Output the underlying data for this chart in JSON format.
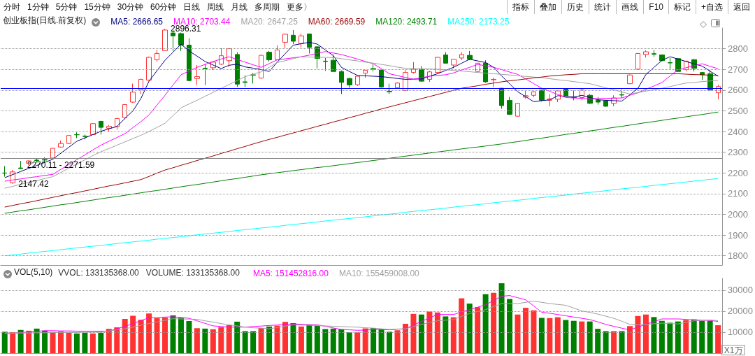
{
  "chart_data": [
    {
      "type": "other",
      "annotations": [
        "分时",
        "1分钟",
        "5分钟",
        "15分钟",
        "30分钟",
        "60分钟",
        "日线",
        "周线",
        "月线",
        "多周期",
        "更多〉"
      ]
    },
    {
      "type": "other",
      "annotations": [
        "指标",
        "叠加",
        "历史",
        "统计",
        "画线",
        "F10",
        "标记",
        "+自选",
        "返回"
      ]
    },
    {
      "type": "candlestick",
      "title": "创业板指(日线.前复权)",
      "categories": [
        null,
        null,
        null,
        null,
        null,
        null,
        null,
        null,
        null,
        null,
        null,
        null,
        null,
        null,
        null,
        null,
        null,
        null,
        null,
        null,
        null,
        null,
        null,
        null,
        null,
        null,
        null,
        null,
        null,
        null,
        null,
        null,
        null,
        null,
        null,
        null,
        null,
        null,
        null,
        null,
        null,
        null,
        null,
        null,
        null,
        null,
        null,
        null,
        null,
        null,
        null,
        null,
        null,
        null,
        null,
        null,
        null,
        null,
        null,
        null,
        null,
        null,
        null,
        null,
        null,
        null,
        null,
        null,
        null,
        null,
        null,
        null,
        null,
        null,
        null,
        null,
        null,
        null,
        null,
        null,
        null,
        null,
        null,
        null,
        null,
        null,
        null,
        null,
        null,
        null
      ],
      "ohlc": [
        [
          2200,
          2233,
          2182,
          2198
        ],
        [
          2152,
          2215,
          2147.42,
          2205
        ],
        [
          2224,
          2258,
          2219,
          2221
        ],
        [
          2247,
          2260,
          2238,
          2258
        ],
        [
          2262,
          2272,
          2250,
          2260
        ],
        [
          2265,
          2275,
          2250,
          2262
        ],
        [
          2272,
          2320,
          2268,
          2319
        ],
        [
          2325,
          2356,
          2322,
          2342
        ],
        [
          2342,
          2383,
          2340,
          2381
        ],
        [
          2385,
          2396,
          2368,
          2384
        ],
        [
          2378,
          2385,
          2362,
          2376
        ],
        [
          2385,
          2440,
          2383,
          2438
        ],
        [
          2449,
          2452,
          2385,
          2420
        ],
        [
          2416,
          2432,
          2398,
          2425
        ],
        [
          2424,
          2466,
          2409,
          2463
        ],
        [
          2467,
          2532,
          2460,
          2530
        ],
        [
          2542,
          2631,
          2538,
          2590
        ],
        [
          2601,
          2655,
          2581,
          2652
        ],
        [
          2648,
          2762,
          2645,
          2758
        ],
        [
          2746,
          2794,
          2738,
          2777
        ],
        [
          2791,
          2896.31,
          2790,
          2890
        ],
        [
          2876,
          2890,
          2789,
          2862
        ],
        [
          2873,
          2878,
          2789,
          2817
        ],
        [
          2817,
          2850,
          2643,
          2646
        ],
        [
          2656,
          2721,
          2624,
          2665
        ],
        [
          2706,
          2727,
          2624,
          2703
        ],
        [
          2708,
          2740,
          2697,
          2735
        ],
        [
          2725,
          2802,
          2721,
          2766
        ],
        [
          2742,
          2802,
          2712,
          2800
        ],
        [
          2772,
          2783,
          2615,
          2629
        ],
        [
          2640,
          2671,
          2615,
          2637
        ],
        [
          2674,
          2682,
          2632,
          2672
        ],
        [
          2658,
          2770,
          2655,
          2768
        ],
        [
          2783,
          2789,
          2738,
          2746
        ],
        [
          2747,
          2817,
          2745,
          2794
        ],
        [
          2831,
          2872,
          2800,
          2870
        ],
        [
          2865,
          2890,
          2822,
          2836
        ],
        [
          2825,
          2873,
          2806,
          2862
        ],
        [
          2871,
          2873,
          2777,
          2806
        ],
        [
          2809,
          2812,
          2705,
          2753
        ],
        [
          2740,
          2755,
          2693,
          2738
        ],
        [
          2744,
          2772,
          2688,
          2690
        ],
        [
          2690,
          2695,
          2581,
          2637
        ],
        [
          2656,
          2660,
          2611,
          2625
        ],
        [
          2626,
          2668,
          2620,
          2667
        ],
        [
          2682,
          2697,
          2660,
          2696
        ],
        [
          2704,
          2724,
          2690,
          2701
        ],
        [
          2697,
          2699,
          2612,
          2615
        ],
        [
          2594,
          2631,
          2581,
          2592
        ],
        [
          2611,
          2638,
          2610,
          2634
        ],
        [
          2598,
          2701,
          2596,
          2685
        ],
        [
          2685,
          2735,
          2680,
          2701
        ],
        [
          2701,
          2716,
          2640,
          2643
        ],
        [
          2652,
          2693,
          2640,
          2688
        ],
        [
          2685,
          2760,
          2683,
          2758
        ],
        [
          2770,
          2783,
          2728,
          2730
        ],
        [
          2721,
          2750,
          2705,
          2749
        ],
        [
          2755,
          2783,
          2745,
          2772
        ],
        [
          2768,
          2789,
          2745,
          2749
        ],
        [
          2690,
          2732,
          2688,
          2730
        ],
        [
          2730,
          2744,
          2635,
          2640
        ],
        [
          2650,
          2660,
          2615,
          2652
        ],
        [
          2609,
          2610,
          2510,
          2525
        ],
        [
          2550,
          2567,
          2480,
          2483
        ],
        [
          2474,
          2538,
          2472,
          2536
        ],
        [
          2566,
          2598,
          2558,
          2573
        ],
        [
          2575,
          2595,
          2566,
          2592
        ],
        [
          2600,
          2602,
          2545,
          2551
        ],
        [
          2551,
          2581,
          2522,
          2558
        ],
        [
          2556,
          2600,
          2542,
          2596
        ],
        [
          2607,
          2610,
          2570,
          2572
        ],
        [
          2566,
          2598,
          2551,
          2564
        ],
        [
          2564,
          2607,
          2551,
          2600
        ],
        [
          2575,
          2581,
          2533,
          2536
        ],
        [
          2551,
          2566,
          2530,
          2542
        ],
        [
          2549,
          2552,
          2520,
          2522
        ],
        [
          2536,
          2575,
          2522,
          2562
        ],
        [
          2578,
          2603,
          2562,
          2576
        ],
        [
          2631,
          2675,
          2629,
          2673
        ],
        [
          2701,
          2779,
          2698,
          2777
        ],
        [
          2772,
          2792,
          2757,
          2785
        ],
        [
          2776,
          2794,
          2761,
          2773
        ],
        [
          2770,
          2772,
          2740,
          2742
        ],
        [
          2733,
          2755,
          2701,
          2731
        ],
        [
          2752,
          2755,
          2688,
          2690
        ],
        [
          2699,
          2742,
          2690,
          2740
        ],
        [
          2747,
          2750,
          2690,
          2705
        ],
        [
          2685,
          2687,
          2648,
          2674
        ],
        [
          2679,
          2699,
          2595,
          2600
        ],
        [
          2587,
          2626,
          2555,
          2617
        ]
      ],
      "series": [
        {
          "name": "MA5: 2666.65",
          "type": "line",
          "color": "#000080",
          "values": [
            2177,
            2192,
            2207,
            2222,
            2236,
            2251,
            2266,
            2295,
            2324,
            2353,
            2369,
            2385,
            2401,
            2413,
            2424,
            2463,
            2500,
            2560,
            2643,
            2694,
            2744,
            2783,
            2822,
            2789,
            2764,
            2738,
            2721,
            2704,
            2720,
            2725,
            2712,
            2706,
            2699,
            2690,
            2735,
            2776,
            2817,
            2824,
            2831,
            2822,
            2794,
            2766,
            2710,
            2690,
            2671,
            2669,
            2667,
            2665,
            2661,
            2656,
            2652,
            2653,
            2654,
            2667,
            2679,
            2695,
            2710,
            2730,
            2749,
            2741,
            2733,
            2710,
            2668,
            2630,
            2592,
            2568,
            2544,
            2549,
            2553,
            2573,
            2570,
            2566,
            2575,
            2564,
            2553,
            2551,
            2549,
            2547,
            2578,
            2609,
            2676,
            2710,
            2744,
            2761,
            2750,
            2738,
            2727,
            2716,
            2691,
            2667
          ]
        },
        {
          "name": "MA10: 2703.44",
          "type": "line",
          "color": "#ff00ff",
          "values": [
            2160,
            2166,
            2171,
            2177,
            2182,
            2188,
            2193,
            2217,
            2240,
            2264,
            2287,
            2311,
            2334,
            2353,
            2371,
            2390,
            2419,
            2448,
            2480,
            2528,
            2575,
            2625,
            2674,
            2692,
            2710,
            2724,
            2738,
            2750,
            2761,
            2748,
            2735,
            2722,
            2710,
            2728,
            2746,
            2751,
            2756,
            2761,
            2769,
            2778,
            2786,
            2779,
            2772,
            2761,
            2750,
            2738,
            2727,
            2703,
            2679,
            2670,
            2661,
            2652,
            2660,
            2667,
            2671,
            2674,
            2683,
            2697,
            2710,
            2724,
            2717,
            2710,
            2699,
            2687,
            2676,
            2654,
            2631,
            2609,
            2594,
            2579,
            2564,
            2562,
            2560,
            2558,
            2559,
            2560,
            2561,
            2562,
            2575,
            2587,
            2604,
            2620,
            2637,
            2668,
            2699,
            2708,
            2718,
            2727,
            2715,
            2703
          ]
        },
        {
          "name": "MA20: 2647.25",
          "type": "line",
          "color": "#a0a0a0",
          "values": [
            2126,
            2135,
            2145,
            2154,
            2163,
            2173,
            2182,
            2202,
            2223,
            2243,
            2263,
            2284,
            2302,
            2318,
            2334,
            2350,
            2366,
            2382,
            2400,
            2420,
            2440,
            2477,
            2514,
            2533,
            2551,
            2570,
            2589,
            2608,
            2627,
            2646,
            2665,
            2677,
            2688,
            2710,
            2733,
            2742,
            2752,
            2761,
            2760,
            2759,
            2758,
            2757,
            2752,
            2746,
            2741,
            2735,
            2730,
            2724,
            2718,
            2711,
            2705,
            2704,
            2703,
            2702,
            2701,
            2698,
            2695,
            2692,
            2689,
            2685,
            2682,
            2679,
            2676,
            2673,
            2670,
            2666,
            2663,
            2660,
            2655,
            2650,
            2646,
            2641,
            2636,
            2631,
            2621,
            2611,
            2601,
            2591,
            2581,
            2588,
            2595,
            2602,
            2609,
            2617,
            2626,
            2634,
            2637,
            2641,
            2644,
            2647
          ]
        },
        {
          "name": "MA60: 2669.59",
          "type": "line",
          "color": "#990000",
          "values": [
            2035,
            2043,
            2051,
            2058,
            2066,
            2074,
            2082,
            2090,
            2098,
            2105,
            2113,
            2121,
            2129,
            2137,
            2144,
            2152,
            2160,
            2168,
            2183,
            2199,
            2214,
            2225,
            2237,
            2248,
            2260,
            2271,
            2282,
            2294,
            2305,
            2317,
            2328,
            2340,
            2351,
            2362,
            2372,
            2383,
            2393,
            2404,
            2414,
            2425,
            2435,
            2446,
            2456,
            2467,
            2477,
            2488,
            2498,
            2509,
            2519,
            2529,
            2539,
            2549,
            2559,
            2569,
            2579,
            2589,
            2599,
            2609,
            2615,
            2621,
            2628,
            2634,
            2640,
            2645,
            2649,
            2654,
            2659,
            2663,
            2668,
            2671,
            2674,
            2676,
            2679,
            2679,
            2679,
            2679,
            2679,
            2679,
            2679,
            2679,
            2679,
            2679,
            2679,
            2679,
            2679,
            2677,
            2675,
            2674,
            2672,
            2670
          ]
        },
        {
          "name": "MA120: 2493.71",
          "type": "line",
          "color": "#008000",
          "values": [
            2005,
            2011,
            2017,
            2022,
            2028,
            2034,
            2040,
            2046,
            2051,
            2057,
            2063,
            2069,
            2075,
            2081,
            2086,
            2092,
            2098,
            2104,
            2110,
            2115,
            2121,
            2127,
            2133,
            2139,
            2144,
            2150,
            2156,
            2162,
            2168,
            2173,
            2179,
            2185,
            2191,
            2196,
            2201,
            2206,
            2211,
            2216,
            2221,
            2226,
            2230,
            2235,
            2240,
            2245,
            2250,
            2255,
            2260,
            2265,
            2271,
            2276,
            2281,
            2286,
            2291,
            2296,
            2301,
            2306,
            2311,
            2316,
            2321,
            2325,
            2330,
            2335,
            2340,
            2346,
            2351,
            2357,
            2363,
            2368,
            2374,
            2380,
            2386,
            2391,
            2397,
            2403,
            2408,
            2414,
            2420,
            2425,
            2431,
            2437,
            2443,
            2448,
            2454,
            2460,
            2465,
            2471,
            2477,
            2482,
            2488,
            2494
          ]
        },
        {
          "name": "MA250: 2173.25",
          "type": "line",
          "color": "#00ffff",
          "values": [
            1800,
            1804,
            1808,
            1813,
            1817,
            1821,
            1825,
            1829,
            1834,
            1838,
            1842,
            1846,
            1850,
            1854,
            1859,
            1863,
            1867,
            1871,
            1875,
            1880,
            1884,
            1888,
            1892,
            1896,
            1901,
            1905,
            1909,
            1913,
            1917,
            1922,
            1926,
            1930,
            1934,
            1938,
            1942,
            1947,
            1951,
            1955,
            1959,
            1963,
            1968,
            1972,
            1976,
            1980,
            1984,
            1988,
            1993,
            1997,
            2001,
            2005,
            2010,
            2014,
            2018,
            2022,
            2026,
            2030,
            2035,
            2039,
            2043,
            2047,
            2051,
            2056,
            2060,
            2064,
            2068,
            2072,
            2077,
            2081,
            2085,
            2089,
            2093,
            2098,
            2102,
            2106,
            2110,
            2114,
            2119,
            2123,
            2127,
            2131,
            2135,
            2140,
            2144,
            2148,
            2152,
            2156,
            2161,
            2165,
            2169,
            2173
          ]
        }
      ],
      "ref_lines": [
        {
          "axis": "y",
          "value": 2610,
          "color": "#0000ff"
        },
        {
          "axis": "y",
          "value": 2271,
          "color": "#808080"
        }
      ],
      "annotations": [
        "2896.31",
        "2147.42",
        "2270.11 - 2271.59"
      ],
      "ylim": [
        1755,
        2900
      ],
      "yticks": [
        1800,
        1900,
        2000,
        2100,
        2200,
        2300,
        2400,
        2500,
        2600,
        2700,
        2800
      ],
      "grid": "y",
      "legend": "top left",
      "marker": "none",
      "tick_labels": "y"
    },
    {
      "type": "bar",
      "title": "VOL(5,10)",
      "ylabel": "X1万",
      "categories": [
        null,
        null,
        null,
        null,
        null,
        null,
        null,
        null,
        null,
        null,
        null,
        null,
        null,
        null,
        null,
        null,
        null,
        null,
        null,
        null,
        null,
        null,
        null,
        null,
        null,
        null,
        null,
        null,
        null,
        null,
        null,
        null,
        null,
        null,
        null,
        null,
        null,
        null,
        null,
        null,
        null,
        null,
        null,
        null,
        null,
        null,
        null,
        null,
        null,
        null,
        null,
        null,
        null,
        null,
        null,
        null,
        null,
        null,
        null,
        null,
        null,
        null,
        null,
        null,
        null,
        null,
        null,
        null,
        null,
        null,
        null,
        null,
        null,
        null,
        null,
        null,
        null,
        null,
        null,
        null,
        null,
        null,
        null,
        null,
        null,
        null,
        null,
        null,
        null,
        null
      ],
      "series": [
        {
          "type": "bar",
          "values": [
            10200,
            10000,
            11100,
            10700,
            11700,
            10700,
            10100,
            10300,
            9800,
            9400,
            9700,
            9400,
            9700,
            11600,
            12300,
            16300,
            17800,
            15900,
            18900,
            16700,
            16900,
            18000,
            16900,
            15300,
            11900,
            11700,
            11400,
            12400,
            13300,
            15000,
            10500,
            10500,
            12000,
            12700,
            13100,
            14900,
            14300,
            12700,
            13500,
            13000,
            11500,
            11700,
            11400,
            9900,
            9900,
            11800,
            12000,
            11500,
            10200,
            10900,
            14000,
            18700,
            18400,
            19800,
            19400,
            17500,
            17100,
            26100,
            23600,
            21900,
            28100,
            28700,
            33300,
            25800,
            18400,
            21600,
            20400,
            16800,
            16700,
            17100,
            15800,
            15400,
            15100,
            15100,
            11600,
            10500,
            10500,
            10500,
            12900,
            17700,
            18400,
            17200,
            15400,
            14500,
            15100,
            15800,
            16100,
            15400,
            15400,
            13300
          ],
          "colors": [
            "#008000",
            "#ff3232",
            "#008000",
            "#ff3232",
            "#008000",
            "#008000",
            "#ff3232",
            "#ff3232",
            "#ff3232",
            "#008000",
            "#008000",
            "#ff3232",
            "#008000",
            "#ff3232",
            "#ff3232",
            "#ff3232",
            "#ff3232",
            "#ff3232",
            "#ff3232",
            "#ff3232",
            "#ff3232",
            "#008000",
            "#008000",
            "#008000",
            "#ff3232",
            "#008000",
            "#ff3232",
            "#ff3232",
            "#ff3232",
            "#008000",
            "#008000",
            "#008000",
            "#ff3232",
            "#008000",
            "#ff3232",
            "#ff3232",
            "#008000",
            "#ff3232",
            "#008000",
            "#008000",
            "#008000",
            "#008000",
            "#008000",
            "#008000",
            "#ff3232",
            "#ff3232",
            "#008000",
            "#008000",
            "#008000",
            "#ff3232",
            "#ff3232",
            "#ff3232",
            "#008000",
            "#ff3232",
            "#ff3232",
            "#008000",
            "#ff3232",
            "#ff3232",
            "#008000",
            "#ff3232",
            "#008000",
            "#ff3232",
            "#008000",
            "#008000",
            "#ff3232",
            "#ff3232",
            "#ff3232",
            "#008000",
            "#ff3232",
            "#ff3232",
            "#008000",
            "#008000",
            "#ff3232",
            "#008000",
            "#008000",
            "#008000",
            "#ff3232",
            "#008000",
            "#ff3232",
            "#ff3232",
            "#ff3232",
            "#008000",
            "#008000",
            "#008000",
            "#008000",
            "#ff3232",
            "#008000",
            "#008000",
            "#008000",
            "#ff3232"
          ]
        },
        {
          "name": "MA5: 151452816.00",
          "type": "line",
          "color": "#ff00ff",
          "values": [
            9200,
            9500,
            9800,
            10100,
            10400,
            10700,
            10700,
            10600,
            10600,
            10500,
            10500,
            10500,
            10500,
            10500,
            11600,
            12700,
            14100,
            15500,
            16900,
            17000,
            17200,
            17300,
            17000,
            16600,
            15400,
            14200,
            13000,
            12700,
            12400,
            12400,
            12400,
            12700,
            12900,
            13200,
            13400,
            13700,
            13900,
            13800,
            13600,
            13500,
            12800,
            12000,
            11300,
            11100,
            10900,
            11000,
            11200,
            11300,
            11100,
            11400,
            11600,
            13400,
            15100,
            16800,
            18400,
            18400,
            18400,
            19600,
            20700,
            21900,
            23000,
            25100,
            27100,
            27400,
            26400,
            25400,
            22500,
            19500,
            19000,
            18400,
            17800,
            17200,
            16600,
            16000,
            14900,
            13700,
            12800,
            11900,
            11100,
            12400,
            13700,
            15000,
            16300,
            16300,
            16300,
            16100,
            15800,
            15700,
            15600,
            15100
          ]
        },
        {
          "name": "MA10: 155459008.00",
          "type": "line",
          "color": "#a0a0a0",
          "values": [
            9500,
            9500,
            9600,
            9600,
            9700,
            9700,
            9800,
            9800,
            9900,
            9900,
            10000,
            10000,
            10100,
            10600,
            11100,
            11600,
            12400,
            13300,
            14100,
            14900,
            15600,
            16400,
            16300,
            16200,
            16100,
            15400,
            14800,
            14100,
            13500,
            13000,
            12400,
            12100,
            11900,
            11600,
            12200,
            12900,
            13500,
            13400,
            13300,
            13100,
            13000,
            12800,
            12700,
            12500,
            12400,
            12100,
            11900,
            11600,
            11300,
            11500,
            11600,
            12700,
            13700,
            14600,
            15400,
            15700,
            16000,
            17500,
            18900,
            19800,
            20700,
            22200,
            23600,
            23600,
            23600,
            24200,
            24800,
            24200,
            23600,
            23200,
            22800,
            21500,
            20100,
            19400,
            18600,
            17600,
            16600,
            15200,
            13700,
            13700,
            13700,
            14000,
            14300,
            14100,
            13900,
            14700,
            15400,
            15600,
            15800,
            15500
          ]
        }
      ],
      "annotations": [
        "VVOL: 133135368.00",
        "VOLUME: 133135368.00"
      ],
      "ylim": [
        0,
        35600
      ],
      "yticks": [
        10000,
        20000,
        30000
      ],
      "grid": "y",
      "legend": "top left",
      "marker": "none",
      "tick_labels": "y"
    }
  ]
}
